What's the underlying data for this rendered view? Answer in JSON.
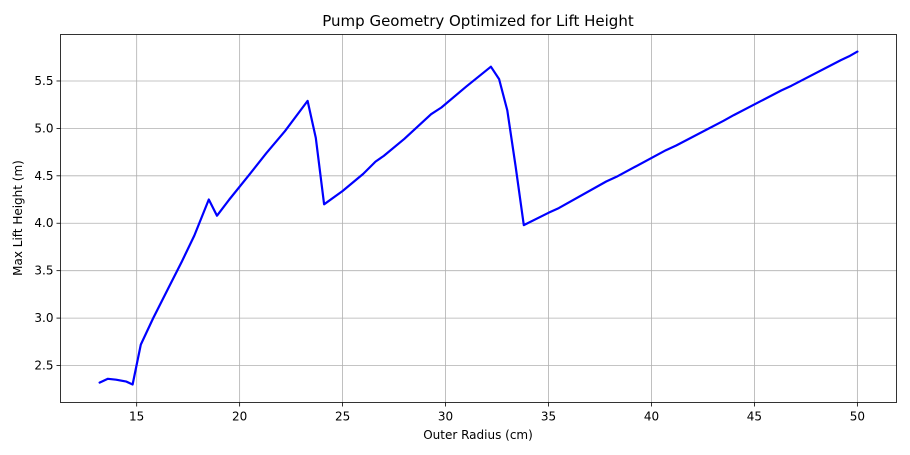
{
  "chart_data": {
    "type": "line",
    "title": "Pump Geometry Optimized for Lift Height",
    "xlabel": "Outer Radius (cm)",
    "ylabel": "Max Lift Height (m)",
    "xlim": [
      11.3,
      51.9
    ],
    "ylim": [
      2.11,
      5.99
    ],
    "xticks": [
      15,
      20,
      25,
      30,
      35,
      40,
      45,
      50
    ],
    "yticks": [
      2.5,
      3.0,
      3.5,
      4.0,
      4.5,
      5.0,
      5.5
    ],
    "grid": true,
    "series": [
      {
        "color": "#0000ff",
        "points": [
          [
            13.2,
            2.32
          ],
          [
            13.6,
            2.36
          ],
          [
            14.0,
            2.35
          ],
          [
            14.5,
            2.33
          ],
          [
            14.8,
            2.3
          ],
          [
            15.2,
            2.72
          ],
          [
            15.8,
            3.0
          ],
          [
            16.5,
            3.3
          ],
          [
            17.2,
            3.6
          ],
          [
            17.8,
            3.87
          ],
          [
            18.5,
            4.25
          ],
          [
            18.9,
            4.08
          ],
          [
            19.5,
            4.25
          ],
          [
            20.5,
            4.52
          ],
          [
            21.3,
            4.74
          ],
          [
            22.2,
            4.97
          ],
          [
            23.3,
            5.29
          ],
          [
            23.7,
            4.9
          ],
          [
            24.1,
            4.2
          ],
          [
            25.0,
            4.34
          ],
          [
            26.0,
            4.52
          ],
          [
            26.6,
            4.65
          ],
          [
            27.0,
            4.71
          ],
          [
            28.0,
            4.89
          ],
          [
            29.3,
            5.15
          ],
          [
            29.8,
            5.22
          ],
          [
            31.0,
            5.44
          ],
          [
            32.2,
            5.65
          ],
          [
            32.6,
            5.52
          ],
          [
            33.0,
            5.19
          ],
          [
            33.4,
            4.6
          ],
          [
            33.8,
            3.98
          ],
          [
            35.0,
            4.11
          ],
          [
            35.5,
            4.16
          ],
          [
            37.8,
            4.44
          ],
          [
            38.3,
            4.49
          ],
          [
            40.7,
            4.77
          ],
          [
            41.2,
            4.82
          ],
          [
            43.5,
            5.08
          ],
          [
            44.0,
            5.14
          ],
          [
            46.3,
            5.4
          ],
          [
            46.8,
            5.45
          ],
          [
            49.2,
            5.72
          ],
          [
            49.6,
            5.76
          ],
          [
            50.0,
            5.81
          ]
        ]
      }
    ]
  }
}
